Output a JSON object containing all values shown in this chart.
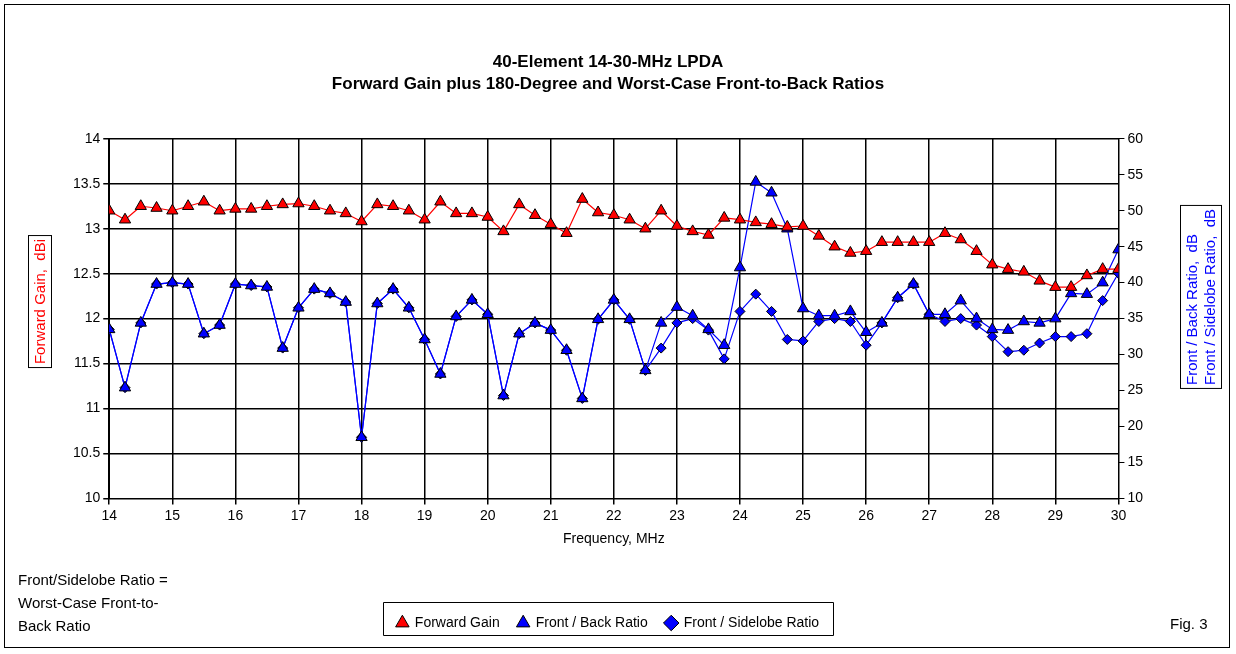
{
  "chart_data": {
    "type": "line",
    "title": "40-Element 14-30-MHz LPDA",
    "subtitle": "Forward Gain plus 180-Degree and Worst-Case Front-to-Back Ratios",
    "xlabel": "Frequency, MHz",
    "ylabel": "Forward Gain,  dBi",
    "y2label": "Front / Back Ratio,  dB\nFront / Sidelobe Ratio,  dB",
    "x": [
      14,
      14.25,
      14.5,
      14.75,
      15,
      15.25,
      15.5,
      15.75,
      16,
      16.25,
      16.5,
      16.75,
      17,
      17.25,
      17.5,
      17.75,
      18,
      18.25,
      18.5,
      18.75,
      19,
      19.25,
      19.5,
      19.75,
      20,
      20.25,
      20.5,
      20.75,
      21,
      21.25,
      21.5,
      21.75,
      22,
      22.25,
      22.5,
      22.75,
      23,
      23.25,
      23.5,
      23.75,
      24,
      24.25,
      24.5,
      24.75,
      25,
      25.25,
      25.5,
      25.75,
      26,
      26.25,
      26.5,
      26.75,
      27,
      27.25,
      27.5,
      27.75,
      28,
      28.25,
      28.5,
      28.75,
      29,
      29.25,
      29.5,
      29.75,
      30
    ],
    "xlim": [
      14,
      30
    ],
    "xticks": [
      14,
      15,
      16,
      17,
      18,
      19,
      20,
      21,
      22,
      23,
      24,
      25,
      26,
      27,
      28,
      29,
      30
    ],
    "ylim": [
      10,
      14
    ],
    "yticks": [
      10,
      10.5,
      11,
      11.5,
      12,
      12.5,
      13,
      13.5,
      14
    ],
    "y2lim": [
      10,
      60
    ],
    "y2ticks": [
      10,
      15,
      20,
      25,
      30,
      35,
      40,
      45,
      50,
      55,
      60
    ],
    "grid": true,
    "legend": "bottom",
    "series": [
      {
        "name": "Forward Gain",
        "color": "#ff0000",
        "marker": "triangle",
        "values": [
          13.2,
          13.1,
          13.25,
          13.23,
          13.2,
          13.25,
          13.3,
          13.2,
          13.22,
          13.22,
          13.25,
          13.27,
          13.28,
          13.25,
          13.2,
          13.17,
          13.08,
          13.27,
          13.25,
          13.2,
          13.1,
          13.3,
          13.17,
          13.17,
          13.13,
          12.97,
          13.27,
          13.15,
          13.05,
          12.95,
          13.33,
          13.18,
          13.15,
          13.1,
          13.0,
          13.2,
          13.03,
          12.97,
          12.93,
          13.12,
          13.1,
          13.07,
          13.05,
          13.02,
          13.03,
          12.92,
          12.8,
          12.73,
          12.75,
          12.85,
          12.85,
          12.85,
          12.85,
          12.95,
          12.88,
          12.75,
          12.6,
          12.55,
          12.52,
          12.42,
          12.35,
          12.35,
          12.48,
          12.55,
          12.55
        ]
      },
      {
        "name": "Front / Back Ratio",
        "color": "#0000ff",
        "marker": "triangle",
        "axis": "y2",
        "values": [
          33.5,
          25.4,
          34.4,
          39.8,
          40,
          39.8,
          32.9,
          34.1,
          39.8,
          39.6,
          39.4,
          30.9,
          36.5,
          39.1,
          38.5,
          37.3,
          18.5,
          37.1,
          39.1,
          36.5,
          32.1,
          27.3,
          35.3,
          37.6,
          35.6,
          24.3,
          32.9,
          34.4,
          33.4,
          30.6,
          23.9,
          34.9,
          37.6,
          34.9,
          27.8,
          34.4,
          36.6,
          35.4,
          33.5,
          31.3,
          42.1,
          54,
          52.5,
          47.5,
          36.4,
          35.4,
          35.4,
          36,
          33.1,
          34.4,
          37.9,
          39.8,
          35.6,
          35.6,
          37.5,
          35,
          33.5,
          33.4,
          34.6,
          34.4,
          35,
          38.5,
          38.4,
          40,
          44.6
        ]
      },
      {
        "name": "Front / Sidelobe Ratio",
        "color": "#0000ff",
        "marker": "diamond",
        "axis": "y2",
        "values": [
          33.5,
          25.4,
          34.4,
          39.8,
          40,
          39.8,
          32.9,
          34.1,
          39.8,
          39.6,
          39.4,
          30.9,
          36.5,
          39.1,
          38.5,
          37.3,
          18.5,
          37.1,
          39.1,
          36.5,
          32.1,
          27.3,
          35.3,
          37.6,
          35.6,
          24.3,
          32.9,
          34.4,
          33.4,
          30.6,
          23.9,
          34.9,
          37.6,
          34.9,
          27.8,
          30.9,
          34.4,
          35,
          33.4,
          29.4,
          36,
          38.4,
          36,
          32.1,
          31.9,
          34.6,
          35,
          34.6,
          31.3,
          34.4,
          37.9,
          39.8,
          35.6,
          34.6,
          35,
          34.1,
          32.5,
          30.4,
          30.6,
          31.6,
          32.5,
          32.5,
          32.9,
          37.5,
          41.3
        ]
      }
    ],
    "annotations": [
      "Front/Sidelobe Ratio = Worst-Case Front-to-Back Ratio",
      "Fig. 3"
    ]
  }
}
